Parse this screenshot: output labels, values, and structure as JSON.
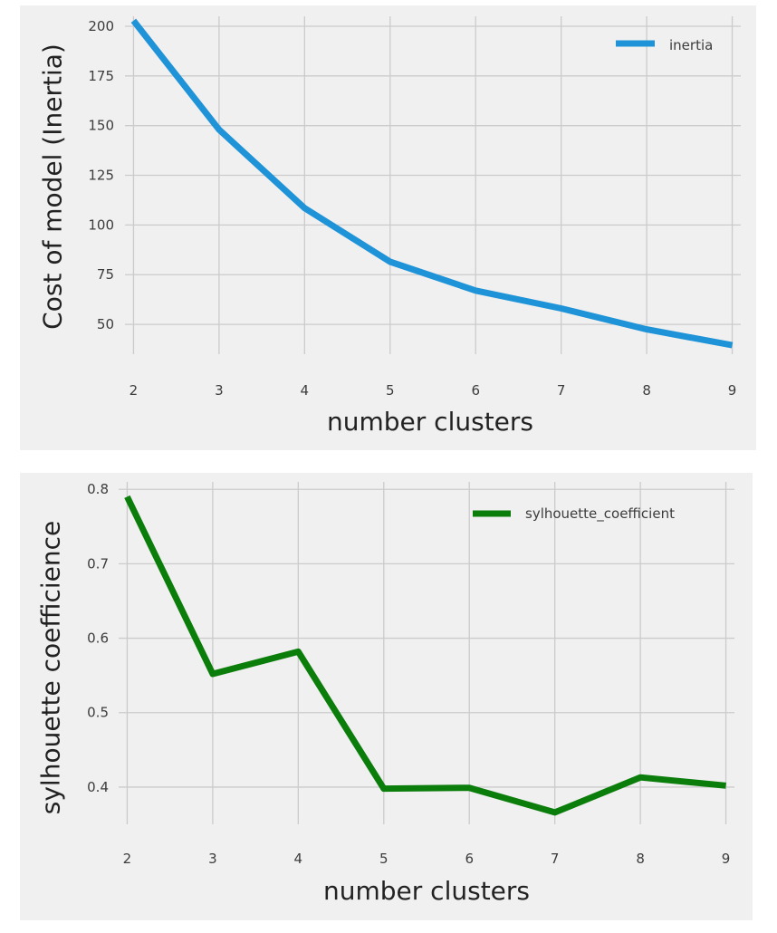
{
  "chart_data": [
    {
      "type": "line",
      "title": "",
      "xlabel": "number clusters",
      "ylabel": "Cost of model (Inertia)",
      "x": [
        2,
        3,
        4,
        5,
        6,
        7,
        8,
        9
      ],
      "xticks": [
        2,
        3,
        4,
        5,
        6,
        7,
        8,
        9
      ],
      "xtick_labels": [
        "2",
        "3",
        "4",
        "5",
        "6",
        "7",
        "8",
        "9"
      ],
      "yticks": [
        50,
        75,
        100,
        125,
        150,
        175,
        200
      ],
      "ytick_labels": [
        "50",
        "75",
        "100",
        "125",
        "150",
        "175",
        "200"
      ],
      "xlim": [
        1.9,
        9.1
      ],
      "ylim": [
        35,
        205
      ],
      "grid": true,
      "legend_position": "top-right",
      "series": [
        {
          "name": "inertia",
          "color": "#1f93d8",
          "values": [
            202.8,
            148,
            108.5,
            81.5,
            67,
            58,
            47.5,
            39.5
          ]
        }
      ]
    },
    {
      "type": "line",
      "title": "",
      "xlabel": "number clusters",
      "ylabel": "sylhouette coefficience",
      "x": [
        2,
        3,
        4,
        5,
        6,
        7,
        8,
        9
      ],
      "xticks": [
        2,
        3,
        4,
        5,
        6,
        7,
        8,
        9
      ],
      "xtick_labels": [
        "2",
        "3",
        "4",
        "5",
        "6",
        "7",
        "8",
        "9"
      ],
      "yticks": [
        0.4,
        0.5,
        0.6,
        0.7,
        0.8
      ],
      "ytick_labels": [
        "0.4",
        "0.5",
        "0.6",
        "0.7",
        "0.8"
      ],
      "xlim": [
        1.9,
        9.1
      ],
      "ylim": [
        0.35,
        0.81
      ],
      "grid": true,
      "legend_position": "top-right",
      "series": [
        {
          "name": "sylhouette_coefficient",
          "color": "#0b7d0b",
          "values": [
            0.79,
            0.552,
            0.582,
            0.398,
            0.399,
            0.366,
            0.413,
            0.402
          ]
        }
      ]
    }
  ]
}
